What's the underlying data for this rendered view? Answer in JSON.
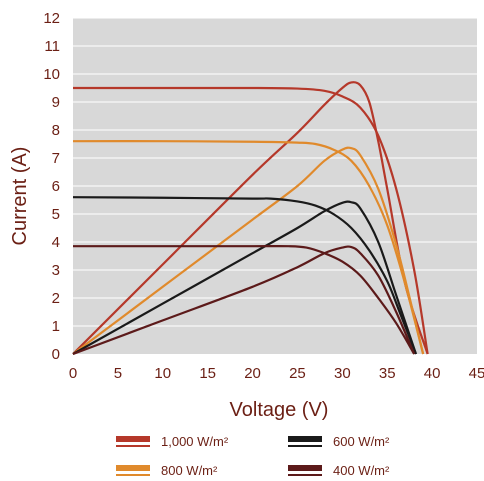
{
  "chart_data": {
    "type": "line",
    "title": "",
    "xlabel": "Voltage (V)",
    "ylabel": "Current (A)",
    "xlim": [
      0,
      45
    ],
    "ylim": [
      0,
      12
    ],
    "x_ticks": [
      "0",
      "5",
      "10",
      "15",
      "20",
      "25",
      "30",
      "35",
      "40",
      "45"
    ],
    "y_ticks": [
      "0",
      "1",
      "2",
      "3",
      "4",
      "5",
      "6",
      "7",
      "8",
      "9",
      "10",
      "11",
      "12"
    ],
    "grid": "horizontal",
    "legend_position": "bottom",
    "series": [
      {
        "name": "1,000 W/m²",
        "color": "#b5382a",
        "iv_curve": [
          [
            0,
            9.5
          ],
          [
            10,
            9.5
          ],
          [
            20,
            9.5
          ],
          [
            25,
            9.48
          ],
          [
            28,
            9.4
          ],
          [
            30,
            9.2
          ],
          [
            32,
            8.8
          ],
          [
            34,
            7.8
          ],
          [
            36,
            5.9
          ],
          [
            38,
            3.0
          ],
          [
            39.5,
            0
          ]
        ],
        "power_curve": [
          [
            0,
            0
          ],
          [
            10,
            3.2
          ],
          [
            20,
            6.4
          ],
          [
            25,
            7.9
          ],
          [
            28,
            8.9
          ],
          [
            30,
            9.5
          ],
          [
            31,
            9.7
          ],
          [
            32,
            9.6
          ],
          [
            33,
            9.0
          ],
          [
            34,
            7.6
          ],
          [
            35,
            5.9
          ],
          [
            37,
            2.5
          ],
          [
            39.5,
            0
          ]
        ]
      },
      {
        "name": "800 W/m²",
        "color": "#e08a2c",
        "iv_curve": [
          [
            0,
            7.6
          ],
          [
            10,
            7.6
          ],
          [
            20,
            7.58
          ],
          [
            25,
            7.55
          ],
          [
            27,
            7.5
          ],
          [
            29,
            7.3
          ],
          [
            31,
            6.9
          ],
          [
            33,
            6.0
          ],
          [
            35,
            4.6
          ],
          [
            37,
            2.5
          ],
          [
            39,
            0
          ]
        ],
        "power_curve": [
          [
            0,
            0
          ],
          [
            10,
            2.4
          ],
          [
            20,
            4.8
          ],
          [
            25,
            6.0
          ],
          [
            28,
            6.9
          ],
          [
            30,
            7.3
          ],
          [
            31,
            7.35
          ],
          [
            32,
            7.1
          ],
          [
            34,
            5.9
          ],
          [
            36,
            3.9
          ],
          [
            37.5,
            2.0
          ],
          [
            39,
            0
          ]
        ]
      },
      {
        "name": "600 W/m²",
        "color": "#1a1a1a",
        "iv_curve": [
          [
            0,
            5.6
          ],
          [
            10,
            5.58
          ],
          [
            20,
            5.55
          ],
          [
            22,
            5.55
          ],
          [
            25,
            5.45
          ],
          [
            27,
            5.3
          ],
          [
            29,
            5.0
          ],
          [
            31,
            4.5
          ],
          [
            33,
            3.7
          ],
          [
            35,
            2.6
          ],
          [
            36.5,
            1.4
          ],
          [
            38.2,
            0
          ]
        ],
        "power_curve": [
          [
            0,
            0
          ],
          [
            10,
            1.8
          ],
          [
            20,
            3.6
          ],
          [
            25,
            4.5
          ],
          [
            28,
            5.1
          ],
          [
            30,
            5.4
          ],
          [
            31,
            5.42
          ],
          [
            32,
            5.2
          ],
          [
            34,
            4.0
          ],
          [
            36,
            2.1
          ],
          [
            38.2,
            0
          ]
        ]
      },
      {
        "name": "400 W/m²",
        "color": "#5c1a1a",
        "iv_curve": [
          [
            0,
            3.85
          ],
          [
            10,
            3.85
          ],
          [
            20,
            3.85
          ],
          [
            24,
            3.85
          ],
          [
            26,
            3.8
          ],
          [
            28,
            3.6
          ],
          [
            30,
            3.3
          ],
          [
            32,
            2.8
          ],
          [
            34,
            2.0
          ],
          [
            36,
            1.1
          ],
          [
            38,
            0
          ]
        ],
        "power_curve": [
          [
            0,
            0
          ],
          [
            10,
            1.2
          ],
          [
            20,
            2.4
          ],
          [
            25,
            3.1
          ],
          [
            28,
            3.6
          ],
          [
            30,
            3.8
          ],
          [
            31,
            3.82
          ],
          [
            32,
            3.6
          ],
          [
            34,
            2.8
          ],
          [
            36,
            1.5
          ],
          [
            38,
            0
          ]
        ]
      }
    ]
  }
}
